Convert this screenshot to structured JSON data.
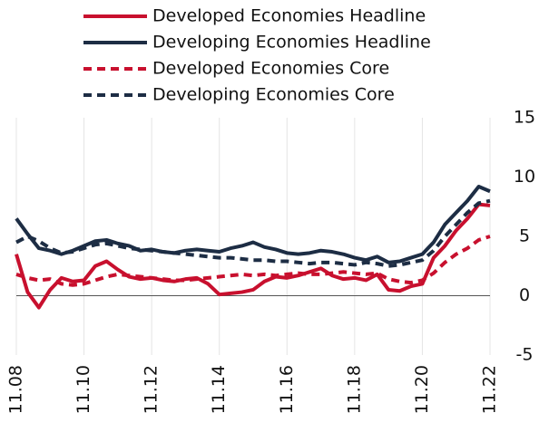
{
  "chart_data": {
    "type": "line",
    "x": [
      0,
      4,
      8,
      12,
      16,
      20,
      24,
      28,
      32,
      36,
      40,
      44,
      48,
      52,
      56,
      60,
      64,
      68,
      72,
      76,
      80,
      84,
      88,
      92,
      96,
      100,
      104,
      108,
      112,
      116,
      120,
      124,
      128,
      132,
      136,
      140,
      144,
      148,
      152,
      156,
      160,
      164,
      168
    ],
    "series": [
      {
        "name": "Developed Economies Headline",
        "color": "#c8102e",
        "dash": false,
        "values": [
          3.5,
          0.3,
          -1,
          0.5,
          1.5,
          1.2,
          1.3,
          2.5,
          2.9,
          2.2,
          1.6,
          1.4,
          1.5,
          1.3,
          1.2,
          1.4,
          1.5,
          1.0,
          0.1,
          0.2,
          0.3,
          0.5,
          1.2,
          1.6,
          1.5,
          1.7,
          2.0,
          2.3,
          1.7,
          1.4,
          1.5,
          1.3,
          1.8,
          0.5,
          0.4,
          0.8,
          1.0,
          3.2,
          4.2,
          5.5,
          6.5,
          7.7,
          7.6
        ]
      },
      {
        "name": "Developing Economies Headline",
        "color": "#1d2d44",
        "dash": false,
        "values": [
          6.5,
          5.2,
          4.0,
          3.8,
          3.5,
          3.8,
          4.2,
          4.6,
          4.7,
          4.4,
          4.2,
          3.8,
          3.9,
          3.7,
          3.6,
          3.8,
          3.9,
          3.8,
          3.7,
          4.0,
          4.2,
          4.5,
          4.1,
          3.9,
          3.6,
          3.5,
          3.6,
          3.8,
          3.7,
          3.5,
          3.2,
          3.0,
          3.3,
          2.8,
          2.9,
          3.2,
          3.5,
          4.5,
          6.0,
          7.0,
          8.0,
          9.2,
          8.8
        ]
      },
      {
        "name": "Developed Economies Core",
        "color": "#c8102e",
        "dash": true,
        "values": [
          1.8,
          1.5,
          1.3,
          1.4,
          1.0,
          0.9,
          1.0,
          1.3,
          1.6,
          1.8,
          1.7,
          1.6,
          1.5,
          1.4,
          1.3,
          1.3,
          1.4,
          1.5,
          1.6,
          1.7,
          1.8,
          1.7,
          1.8,
          1.7,
          1.8,
          1.9,
          1.8,
          1.8,
          1.9,
          2.0,
          1.9,
          1.8,
          1.9,
          1.4,
          1.2,
          1.1,
          1.3,
          1.9,
          2.8,
          3.5,
          4.0,
          4.7,
          5.0
        ]
      },
      {
        "name": "Developing Economies Core",
        "color": "#1d2d44",
        "dash": true,
        "values": [
          4.5,
          5.0,
          4.6,
          4.0,
          3.6,
          3.7,
          4.0,
          4.3,
          4.4,
          4.2,
          4.0,
          3.9,
          3.8,
          3.7,
          3.6,
          3.5,
          3.4,
          3.3,
          3.2,
          3.2,
          3.1,
          3.0,
          3.0,
          2.9,
          2.9,
          2.8,
          2.7,
          2.8,
          2.8,
          2.7,
          2.6,
          2.8,
          2.7,
          2.5,
          2.6,
          2.8,
          3.0,
          3.8,
          5.0,
          6.0,
          7.0,
          7.8,
          8.0
        ]
      }
    ],
    "xlim": [
      0,
      168
    ],
    "xticks": [
      {
        "value": 0,
        "label": "11.08"
      },
      {
        "value": 24,
        "label": "11.10"
      },
      {
        "value": 48,
        "label": "11.12"
      },
      {
        "value": 72,
        "label": "11.14"
      },
      {
        "value": 96,
        "label": "11.16"
      },
      {
        "value": 120,
        "label": "11.18"
      },
      {
        "value": 144,
        "label": "11.20"
      },
      {
        "value": 168,
        "label": "11.22"
      }
    ],
    "ylim": [
      -5,
      15
    ],
    "yticks": [
      -5,
      0,
      5,
      10,
      15
    ],
    "xgrid": true
  }
}
